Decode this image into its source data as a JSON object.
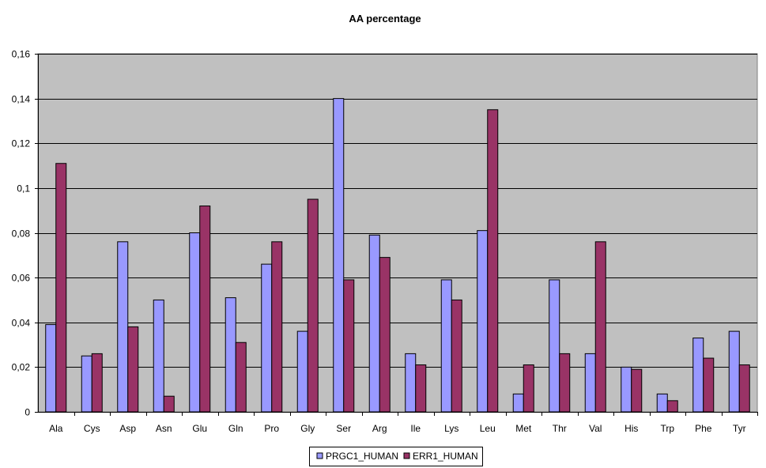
{
  "chart_data": {
    "type": "bar",
    "title": "AA percentage",
    "xlabel": "",
    "ylabel": "",
    "ylim": [
      0,
      0.16
    ],
    "yticks": [
      "0",
      "0,02",
      "0,04",
      "0,06",
      "0,08",
      "0,1",
      "0,12",
      "0,14",
      "0,16"
    ],
    "grid": true,
    "legend_position": "bottom",
    "categories": [
      "Ala",
      "Cys",
      "Asp",
      "Asn",
      "Glu",
      "Gln",
      "Pro",
      "Gly",
      "Ser",
      "Arg",
      "Ile",
      "Lys",
      "Leu",
      "Met",
      "Thr",
      "Val",
      "His",
      "Trp",
      "Phe",
      "Tyr"
    ],
    "series": [
      {
        "name": "PRGC1_HUMAN",
        "color": "#9999ff",
        "values": [
          0.039,
          0.025,
          0.076,
          0.05,
          0.08,
          0.051,
          0.066,
          0.036,
          0.14,
          0.079,
          0.026,
          0.059,
          0.081,
          0.008,
          0.059,
          0.026,
          0.02,
          0.008,
          0.033,
          0.036
        ]
      },
      {
        "name": "ERR1_HUMAN",
        "color": "#993366",
        "values": [
          0.111,
          0.026,
          0.038,
          0.007,
          0.092,
          0.031,
          0.076,
          0.095,
          0.059,
          0.069,
          0.021,
          0.05,
          0.135,
          0.021,
          0.026,
          0.076,
          0.019,
          0.005,
          0.024,
          0.021
        ]
      }
    ],
    "plot_background": "#c0c0c0"
  }
}
